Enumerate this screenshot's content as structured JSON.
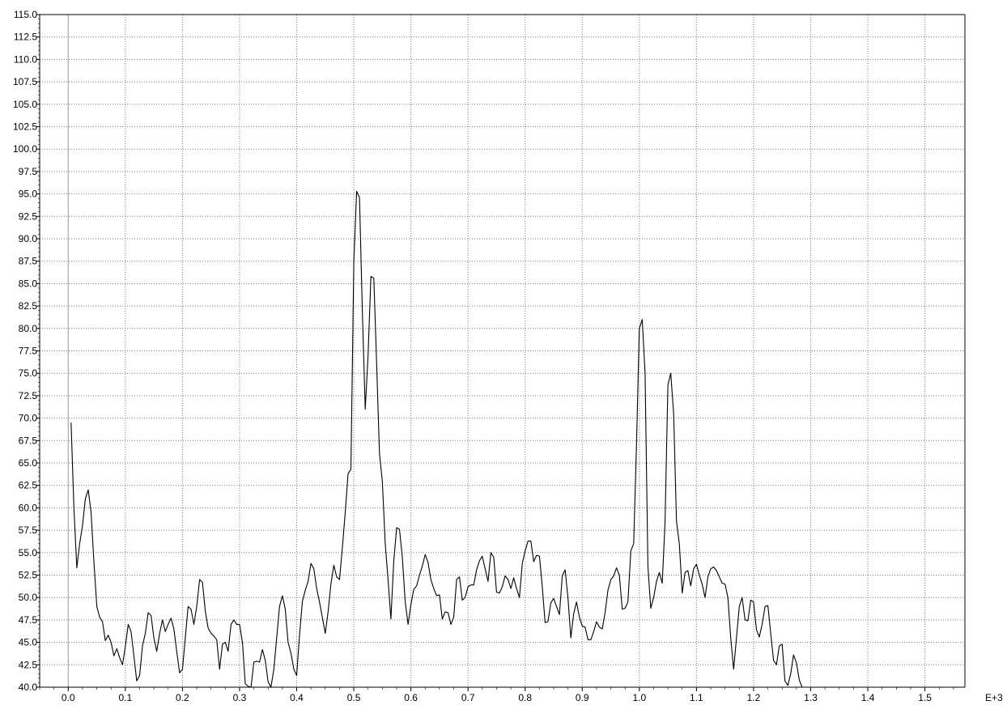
{
  "chart_data": {
    "type": "line",
    "title": "",
    "xlabel": "",
    "ylabel": "",
    "x_multiplier_label": "E+3",
    "xlim": [
      -0.05,
      1.57
    ],
    "ylim": [
      40.0,
      115.0
    ],
    "grid": true,
    "x_ticks": [
      "0.0",
      "0.1",
      "0.2",
      "0.3",
      "0.4",
      "0.5",
      "0.6",
      "0.7",
      "0.8",
      "0.9",
      "1.0",
      "1.1",
      "1.2",
      "1.3",
      "1.4",
      "1.5"
    ],
    "y_ticks": [
      "40.0",
      "42.5",
      "45.0",
      "47.5",
      "50.0",
      "52.5",
      "55.0",
      "57.5",
      "60.0",
      "62.5",
      "65.0",
      "67.5",
      "70.0",
      "72.5",
      "75.0",
      "77.5",
      "80.0",
      "82.5",
      "85.0",
      "87.5",
      "90.0",
      "92.5",
      "95.0",
      "97.5",
      "100.0",
      "102.5",
      "105.0",
      "107.5",
      "110.0",
      "112.5",
      "115.0"
    ],
    "series": [
      {
        "values": [
          [
            0.005,
            69.5
          ],
          [
            0.01,
            60.0
          ],
          [
            0.015,
            53.3
          ],
          [
            0.02,
            56.0
          ],
          [
            0.025,
            58.0
          ],
          [
            0.03,
            61.0
          ],
          [
            0.035,
            62.0
          ],
          [
            0.04,
            59.5
          ],
          [
            0.045,
            54.0
          ],
          [
            0.05,
            49.0
          ],
          [
            0.055,
            47.8
          ],
          [
            0.06,
            47.3
          ],
          [
            0.065,
            45.2
          ],
          [
            0.07,
            45.8
          ],
          [
            0.075,
            45.0
          ],
          [
            0.08,
            43.5
          ],
          [
            0.085,
            44.3
          ],
          [
            0.09,
            43.3
          ],
          [
            0.095,
            42.5
          ],
          [
            0.1,
            44.5
          ],
          [
            0.105,
            47.0
          ],
          [
            0.11,
            46.2
          ],
          [
            0.115,
            43.5
          ],
          [
            0.12,
            40.7
          ],
          [
            0.125,
            41.3
          ],
          [
            0.13,
            44.6
          ],
          [
            0.135,
            46.0
          ],
          [
            0.14,
            48.3
          ],
          [
            0.145,
            48.0
          ],
          [
            0.15,
            45.5
          ],
          [
            0.155,
            44.0
          ],
          [
            0.16,
            46.0
          ],
          [
            0.165,
            47.5
          ],
          [
            0.17,
            46.2
          ],
          [
            0.175,
            47.0
          ],
          [
            0.18,
            47.7
          ],
          [
            0.185,
            46.5
          ],
          [
            0.19,
            44.0
          ],
          [
            0.195,
            41.6
          ],
          [
            0.2,
            42.0
          ],
          [
            0.205,
            45.5
          ],
          [
            0.21,
            49.0
          ],
          [
            0.215,
            48.7
          ],
          [
            0.22,
            47.0
          ],
          [
            0.225,
            49.0
          ],
          [
            0.23,
            52.0
          ],
          [
            0.235,
            51.7
          ],
          [
            0.24,
            48.5
          ],
          [
            0.245,
            46.6
          ],
          [
            0.25,
            46.0
          ],
          [
            0.255,
            45.7
          ],
          [
            0.26,
            45.3
          ],
          [
            0.265,
            42.0
          ],
          [
            0.27,
            44.8
          ],
          [
            0.275,
            45.0
          ],
          [
            0.28,
            44.0
          ],
          [
            0.285,
            47.0
          ],
          [
            0.29,
            47.5
          ],
          [
            0.295,
            47.0
          ],
          [
            0.3,
            47.0
          ],
          [
            0.305,
            45.0
          ],
          [
            0.31,
            40.4
          ],
          [
            0.315,
            40.1
          ],
          [
            0.32,
            40.0
          ],
          [
            0.325,
            42.8
          ],
          [
            0.33,
            42.9
          ],
          [
            0.335,
            42.8
          ],
          [
            0.34,
            44.2
          ],
          [
            0.345,
            43.0
          ],
          [
            0.35,
            40.6
          ],
          [
            0.355,
            40.0
          ],
          [
            0.36,
            42.0
          ],
          [
            0.365,
            45.5
          ],
          [
            0.37,
            49.0
          ],
          [
            0.375,
            50.2
          ],
          [
            0.38,
            48.7
          ],
          [
            0.385,
            45.0
          ],
          [
            0.39,
            43.8
          ],
          [
            0.395,
            42.0
          ],
          [
            0.4,
            41.3
          ],
          [
            0.405,
            45.8
          ],
          [
            0.41,
            49.6
          ],
          [
            0.415,
            50.8
          ],
          [
            0.42,
            51.8
          ],
          [
            0.425,
            53.8
          ],
          [
            0.43,
            53.2
          ],
          [
            0.435,
            51.0
          ],
          [
            0.44,
            49.5
          ],
          [
            0.445,
            47.8
          ],
          [
            0.45,
            46.0
          ],
          [
            0.455,
            48.4
          ],
          [
            0.46,
            51.5
          ],
          [
            0.465,
            53.6
          ],
          [
            0.47,
            52.3
          ],
          [
            0.475,
            52.0
          ],
          [
            0.48,
            55.5
          ],
          [
            0.485,
            59.5
          ],
          [
            0.49,
            63.8
          ],
          [
            0.495,
            64.3
          ],
          [
            0.5,
            87.5
          ],
          [
            0.505,
            95.3
          ],
          [
            0.51,
            94.6
          ],
          [
            0.515,
            82.0
          ],
          [
            0.52,
            71.0
          ],
          [
            0.525,
            77.0
          ],
          [
            0.53,
            85.8
          ],
          [
            0.535,
            85.6
          ],
          [
            0.54,
            76.0
          ],
          [
            0.545,
            66.0
          ],
          [
            0.55,
            63.0
          ],
          [
            0.555,
            56.0
          ],
          [
            0.56,
            52.0
          ],
          [
            0.565,
            47.6
          ],
          [
            0.57,
            54.0
          ],
          [
            0.575,
            57.8
          ],
          [
            0.58,
            57.6
          ],
          [
            0.585,
            54.5
          ],
          [
            0.59,
            49.5
          ],
          [
            0.595,
            47.0
          ],
          [
            0.6,
            49.2
          ],
          [
            0.605,
            50.9
          ],
          [
            0.61,
            51.3
          ],
          [
            0.615,
            52.5
          ],
          [
            0.62,
            53.5
          ],
          [
            0.625,
            54.8
          ],
          [
            0.63,
            53.9
          ],
          [
            0.635,
            52.0
          ],
          [
            0.64,
            51.0
          ],
          [
            0.645,
            50.2
          ],
          [
            0.65,
            50.3
          ],
          [
            0.655,
            47.6
          ],
          [
            0.66,
            48.4
          ],
          [
            0.665,
            48.3
          ],
          [
            0.67,
            47.0
          ],
          [
            0.675,
            47.8
          ],
          [
            0.68,
            52.0
          ],
          [
            0.685,
            52.3
          ],
          [
            0.69,
            49.7
          ],
          [
            0.695,
            50.0
          ],
          [
            0.7,
            51.2
          ],
          [
            0.705,
            51.4
          ],
          [
            0.71,
            51.4
          ],
          [
            0.715,
            53.1
          ],
          [
            0.72,
            54.1
          ],
          [
            0.725,
            54.6
          ],
          [
            0.73,
            53.2
          ],
          [
            0.735,
            51.8
          ],
          [
            0.74,
            55.0
          ],
          [
            0.745,
            54.5
          ],
          [
            0.75,
            50.6
          ],
          [
            0.755,
            50.5
          ],
          [
            0.76,
            51.2
          ],
          [
            0.765,
            52.4
          ],
          [
            0.77,
            52.0
          ],
          [
            0.775,
            51.0
          ],
          [
            0.78,
            52.2
          ],
          [
            0.785,
            51.0
          ],
          [
            0.79,
            50.0
          ],
          [
            0.795,
            53.8
          ],
          [
            0.8,
            55.2
          ],
          [
            0.805,
            56.3
          ],
          [
            0.81,
            56.3
          ],
          [
            0.815,
            54.0
          ],
          [
            0.82,
            54.7
          ],
          [
            0.825,
            54.6
          ],
          [
            0.83,
            51.2
          ],
          [
            0.835,
            47.2
          ],
          [
            0.84,
            47.3
          ],
          [
            0.845,
            49.4
          ],
          [
            0.85,
            49.9
          ],
          [
            0.855,
            49.0
          ],
          [
            0.86,
            48.1
          ],
          [
            0.865,
            52.4
          ],
          [
            0.87,
            53.1
          ],
          [
            0.875,
            50.0
          ],
          [
            0.88,
            45.5
          ],
          [
            0.885,
            48.2
          ],
          [
            0.89,
            49.5
          ],
          [
            0.895,
            47.8
          ],
          [
            0.9,
            46.8
          ],
          [
            0.905,
            46.7
          ],
          [
            0.91,
            45.3
          ],
          [
            0.915,
            45.3
          ],
          [
            0.92,
            46.2
          ],
          [
            0.925,
            47.3
          ],
          [
            0.93,
            46.7
          ],
          [
            0.935,
            46.5
          ],
          [
            0.94,
            48.3
          ],
          [
            0.945,
            50.8
          ],
          [
            0.95,
            52.0
          ],
          [
            0.955,
            52.4
          ],
          [
            0.96,
            53.3
          ],
          [
            0.965,
            52.5
          ],
          [
            0.97,
            48.7
          ],
          [
            0.975,
            48.8
          ],
          [
            0.98,
            49.5
          ],
          [
            0.985,
            55.2
          ],
          [
            0.99,
            56.0
          ],
          [
            0.995,
            67.0
          ],
          [
            1.0,
            80.0
          ],
          [
            1.005,
            81.0
          ],
          [
            1.01,
            75.0
          ],
          [
            1.015,
            53.5
          ],
          [
            1.02,
            48.8
          ],
          [
            1.025,
            50.0
          ],
          [
            1.03,
            51.8
          ],
          [
            1.035,
            52.8
          ],
          [
            1.04,
            51.6
          ],
          [
            1.045,
            58.5
          ],
          [
            1.05,
            73.7
          ],
          [
            1.055,
            75.0
          ],
          [
            1.06,
            70.5
          ],
          [
            1.065,
            58.5
          ],
          [
            1.07,
            56.0
          ],
          [
            1.075,
            50.5
          ],
          [
            1.08,
            52.8
          ],
          [
            1.085,
            53.0
          ],
          [
            1.09,
            51.3
          ],
          [
            1.095,
            53.2
          ],
          [
            1.1,
            53.7
          ],
          [
            1.105,
            52.5
          ],
          [
            1.11,
            51.5
          ],
          [
            1.115,
            50.0
          ],
          [
            1.12,
            52.3
          ],
          [
            1.125,
            53.2
          ],
          [
            1.13,
            53.4
          ],
          [
            1.135,
            53.0
          ],
          [
            1.14,
            52.3
          ],
          [
            1.145,
            51.6
          ],
          [
            1.15,
            51.5
          ],
          [
            1.155,
            50.0
          ],
          [
            1.16,
            45.5
          ],
          [
            1.165,
            42.0
          ],
          [
            1.17,
            45.5
          ],
          [
            1.175,
            49.0
          ],
          [
            1.18,
            50.0
          ],
          [
            1.185,
            47.5
          ],
          [
            1.19,
            47.4
          ],
          [
            1.195,
            49.7
          ],
          [
            1.2,
            49.5
          ],
          [
            1.205,
            46.4
          ],
          [
            1.21,
            45.6
          ],
          [
            1.215,
            47.0
          ],
          [
            1.22,
            49.0
          ],
          [
            1.225,
            49.1
          ],
          [
            1.23,
            46.0
          ],
          [
            1.235,
            43.0
          ],
          [
            1.24,
            42.5
          ],
          [
            1.245,
            44.6
          ],
          [
            1.25,
            44.8
          ],
          [
            1.255,
            40.7
          ],
          [
            1.26,
            40.2
          ],
          [
            1.265,
            41.5
          ],
          [
            1.27,
            43.6
          ],
          [
            1.275,
            42.7
          ],
          [
            1.28,
            40.8
          ],
          [
            1.285,
            40.0
          ]
        ]
      }
    ]
  }
}
